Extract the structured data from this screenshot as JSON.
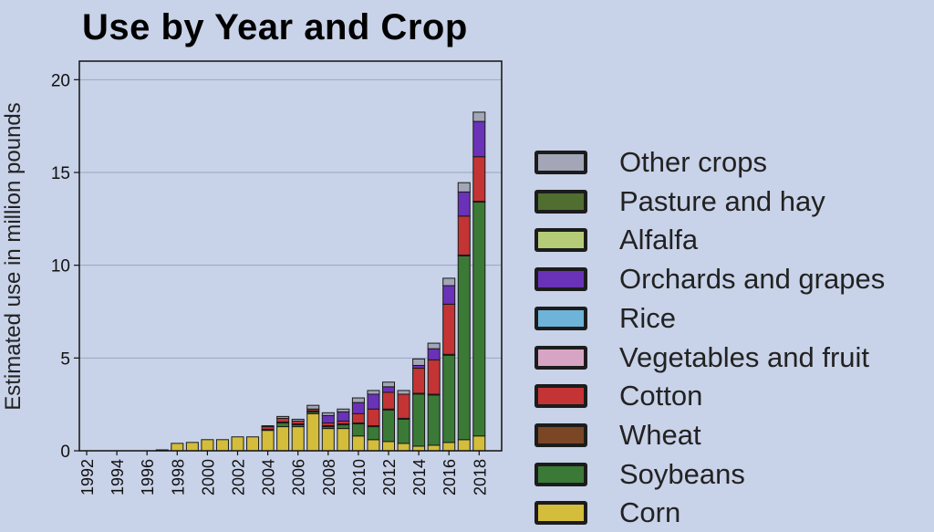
{
  "chart_data": {
    "type": "bar",
    "stacked": true,
    "title": "Use by Year and Crop",
    "xlabel": "",
    "ylabel": "Estimated use in million pounds",
    "ylim": [
      0,
      21
    ],
    "yticks": [
      0,
      5,
      10,
      15,
      20
    ],
    "grid": true,
    "legend_position": "right",
    "categories": [
      "1992",
      "1993",
      "1994",
      "1995",
      "1996",
      "1997",
      "1998",
      "1999",
      "2000",
      "2001",
      "2002",
      "2003",
      "2004",
      "2005",
      "2006",
      "2007",
      "2008",
      "2009",
      "2010",
      "2011",
      "2012",
      "2013",
      "2014",
      "2015",
      "2016",
      "2017",
      "2018"
    ],
    "xtick_labels": [
      "1992",
      "1994",
      "1996",
      "1998",
      "2000",
      "2002",
      "2004",
      "2006",
      "2008",
      "2010",
      "2012",
      "2014",
      "2016",
      "2018"
    ],
    "series": [
      {
        "name": "Corn",
        "color": "#d3bd3b",
        "values": [
          0,
          0,
          0,
          0,
          0,
          0.05,
          0.4,
          0.45,
          0.6,
          0.6,
          0.75,
          0.75,
          1.1,
          1.3,
          1.3,
          2.0,
          1.2,
          1.2,
          0.8,
          0.6,
          0.5,
          0.4,
          0.25,
          0.3,
          0.45,
          0.6,
          0.8
        ]
      },
      {
        "name": "Soybeans",
        "color": "#3a7a36",
        "values": [
          0,
          0,
          0,
          0,
          0,
          0,
          0,
          0,
          0,
          0,
          0,
          0,
          0,
          0.2,
          0.1,
          0.1,
          0.1,
          0.2,
          0.65,
          0.7,
          1.7,
          1.3,
          2.8,
          2.7,
          4.7,
          9.9,
          12.6
        ]
      },
      {
        "name": "Wheat",
        "color": "#7a4626",
        "values": [
          0,
          0,
          0,
          0,
          0,
          0,
          0,
          0,
          0,
          0,
          0,
          0,
          0.05,
          0.05,
          0.05,
          0.05,
          0.05,
          0.05,
          0.05,
          0.05,
          0.05,
          0.05,
          0.05,
          0.05,
          0.05,
          0.05,
          0.05
        ]
      },
      {
        "name": "Cotton",
        "color": "#c43434",
        "values": [
          0,
          0,
          0,
          0,
          0,
          0,
          0,
          0,
          0,
          0,
          0,
          0,
          0.15,
          0.2,
          0.15,
          0.1,
          0.15,
          0.15,
          0.5,
          0.9,
          0.9,
          1.3,
          1.35,
          1.85,
          2.7,
          2.1,
          2.4
        ]
      },
      {
        "name": "Vegetables and fruit",
        "color": "#d8a4c4",
        "values": [
          0,
          0,
          0,
          0,
          0,
          0,
          0,
          0,
          0,
          0,
          0,
          0,
          0,
          0,
          0,
          0,
          0,
          0,
          0,
          0,
          0,
          0,
          0,
          0,
          0,
          0,
          0
        ]
      },
      {
        "name": "Rice",
        "color": "#6eb4d8",
        "values": [
          0,
          0,
          0,
          0,
          0,
          0,
          0,
          0,
          0,
          0,
          0,
          0,
          0,
          0,
          0,
          0,
          0,
          0,
          0,
          0,
          0,
          0,
          0,
          0,
          0,
          0,
          0
        ]
      },
      {
        "name": "Orchards and grapes",
        "color": "#6a32b8",
        "values": [
          0,
          0,
          0,
          0,
          0,
          0,
          0,
          0,
          0,
          0,
          0,
          0,
          0,
          0,
          0,
          0,
          0.4,
          0.5,
          0.6,
          0.8,
          0.3,
          0,
          0.15,
          0.6,
          1.0,
          1.3,
          1.9
        ]
      },
      {
        "name": "Alfalfa",
        "color": "#b4cc78",
        "values": [
          0,
          0,
          0,
          0,
          0,
          0,
          0,
          0,
          0,
          0,
          0,
          0,
          0,
          0,
          0,
          0,
          0,
          0,
          0,
          0,
          0,
          0,
          0,
          0,
          0,
          0,
          0
        ]
      },
      {
        "name": "Pasture and hay",
        "color": "#4f6e30",
        "values": [
          0,
          0,
          0,
          0,
          0,
          0,
          0,
          0,
          0,
          0,
          0,
          0,
          0,
          0,
          0,
          0,
          0,
          0,
          0,
          0,
          0,
          0,
          0,
          0,
          0,
          0,
          0
        ]
      },
      {
        "name": "Other crops",
        "color": "#a2a6b6",
        "values": [
          0,
          0,
          0,
          0,
          0,
          0,
          0,
          0,
          0,
          0,
          0,
          0,
          0.05,
          0.1,
          0.1,
          0.2,
          0.15,
          0.15,
          0.25,
          0.2,
          0.25,
          0.2,
          0.35,
          0.3,
          0.4,
          0.5,
          0.5
        ]
      }
    ]
  },
  "legend_order": [
    "Other crops",
    "Pasture and hay",
    "Alfalfa",
    "Orchards and grapes",
    "Rice",
    "Vegetables and fruit",
    "Cotton",
    "Wheat",
    "Soybeans",
    "Corn"
  ]
}
